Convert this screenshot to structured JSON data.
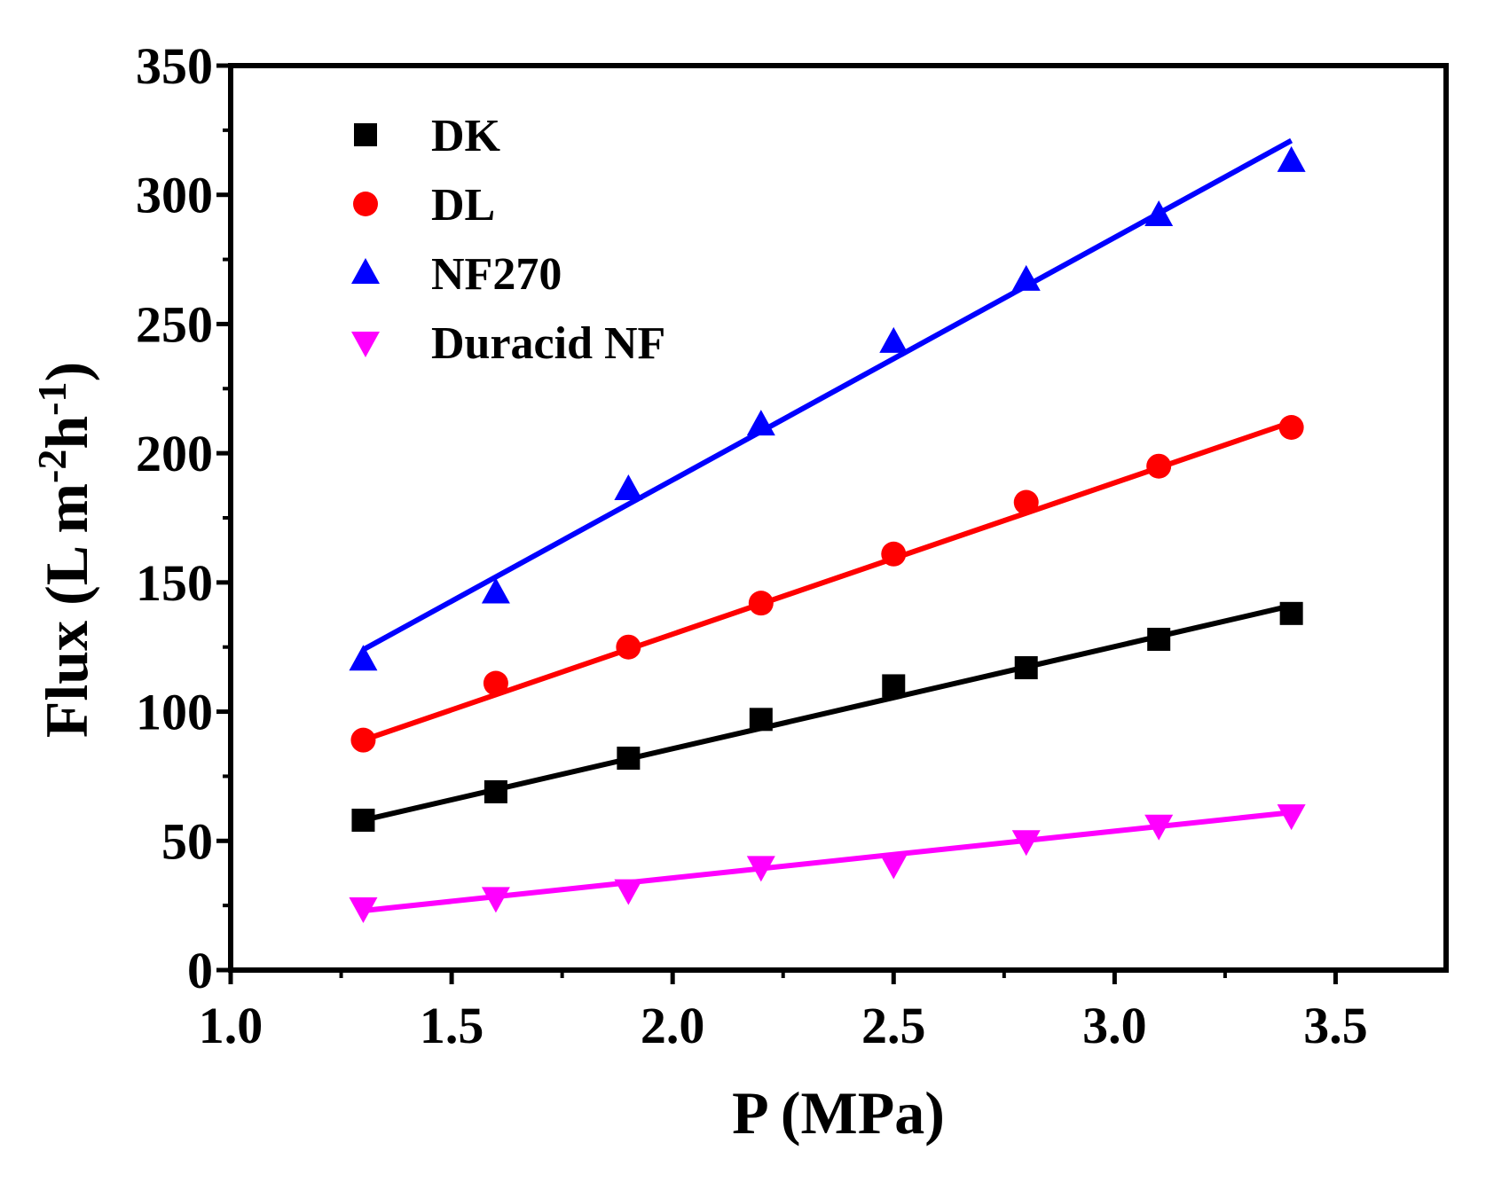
{
  "chart_data": {
    "type": "scatter",
    "title": "",
    "xlabel": "P (MPa)",
    "ylabel_parts": {
      "main": "Flux (L m",
      "sup1": "-2",
      "mid": "h",
      "sup2": "-1",
      "end": ")"
    },
    "xlim": [
      1.0,
      3.75
    ],
    "ylim": [
      0,
      350
    ],
    "x_ticks": [
      1.0,
      1.5,
      2.0,
      2.5,
      3.0,
      3.5
    ],
    "x_tick_labels": [
      "1.0",
      "1.5",
      "2.0",
      "2.5",
      "3.0",
      "3.5"
    ],
    "y_ticks": [
      0,
      50,
      100,
      150,
      200,
      250,
      300,
      350
    ],
    "y_tick_labels": [
      "0",
      "50",
      "100",
      "150",
      "200",
      "250",
      "300",
      "350"
    ],
    "grid": false,
    "legend_position": "top-left",
    "series": [
      {
        "name": "DK",
        "marker": "square",
        "color": "#000000",
        "x": [
          1.3,
          1.6,
          1.9,
          2.2,
          2.5,
          2.8,
          3.1,
          3.4
        ],
        "y": [
          58,
          69,
          82,
          97,
          110,
          117,
          128,
          138
        ],
        "fit": {
          "x": [
            1.3,
            3.4
          ],
          "y": [
            58,
            141
          ]
        }
      },
      {
        "name": "DL",
        "marker": "circle",
        "color": "#ff0000",
        "x": [
          1.3,
          1.6,
          1.9,
          2.2,
          2.5,
          2.8,
          3.1,
          3.4
        ],
        "y": [
          89,
          111,
          125,
          142,
          161,
          181,
          195,
          210
        ],
        "fit": {
          "x": [
            1.3,
            3.4
          ],
          "y": [
            89,
            212
          ]
        }
      },
      {
        "name": "NF270",
        "marker": "triangle-up",
        "color": "#0000ff",
        "x": [
          1.3,
          1.6,
          1.9,
          2.2,
          2.5,
          2.8,
          3.1,
          3.4
        ],
        "y": [
          120,
          146,
          186,
          211,
          243,
          267,
          292,
          313
        ],
        "fit": {
          "x": [
            1.3,
            3.4
          ],
          "y": [
            124,
            321
          ]
        }
      },
      {
        "name": "Duracid NF",
        "marker": "triangle-down",
        "color": "#ff00ff",
        "x": [
          1.3,
          1.6,
          1.9,
          2.2,
          2.5,
          2.8,
          3.1,
          3.4
        ],
        "y": [
          24,
          28,
          31,
          40,
          41,
          50,
          56,
          60
        ],
        "fit": {
          "x": [
            1.3,
            3.4
          ],
          "y": [
            23,
            61
          ]
        }
      }
    ]
  }
}
